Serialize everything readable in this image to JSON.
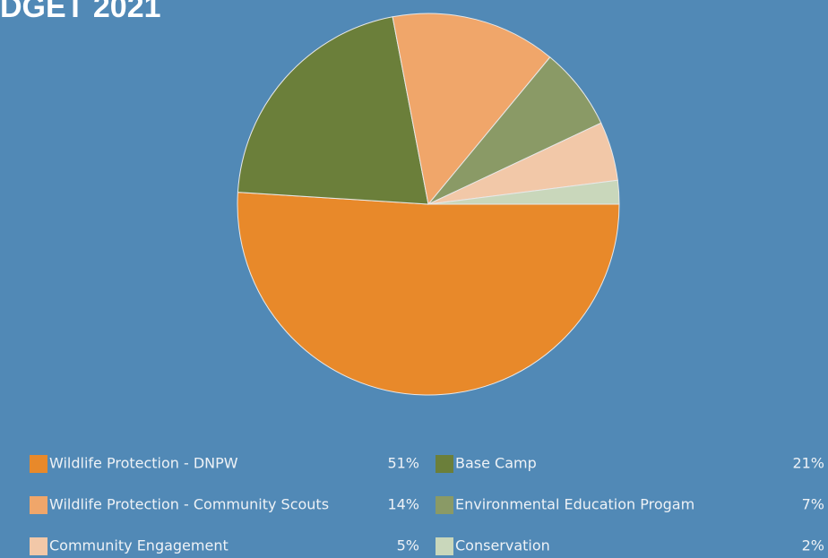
{
  "chart_data": {
    "type": "pie",
    "title": "DGET 2021",
    "categories": [
      "Wildlife Protection - DNPW",
      "Base Camp",
      "Wildlife Protection - Community Scouts",
      "Environmental Education Progam",
      "Community Engagement",
      "Conservation"
    ],
    "values": [
      51,
      21,
      14,
      7,
      5,
      2
    ],
    "value_labels": [
      "51%",
      "21%",
      "14%",
      "7%",
      "5%",
      "2%"
    ],
    "colors": [
      "#e8892a",
      "#6b7f3a",
      "#f0a66a",
      "#8a9a66",
      "#f2c8a8",
      "#c9d7bb"
    ],
    "legend": "bottom"
  }
}
